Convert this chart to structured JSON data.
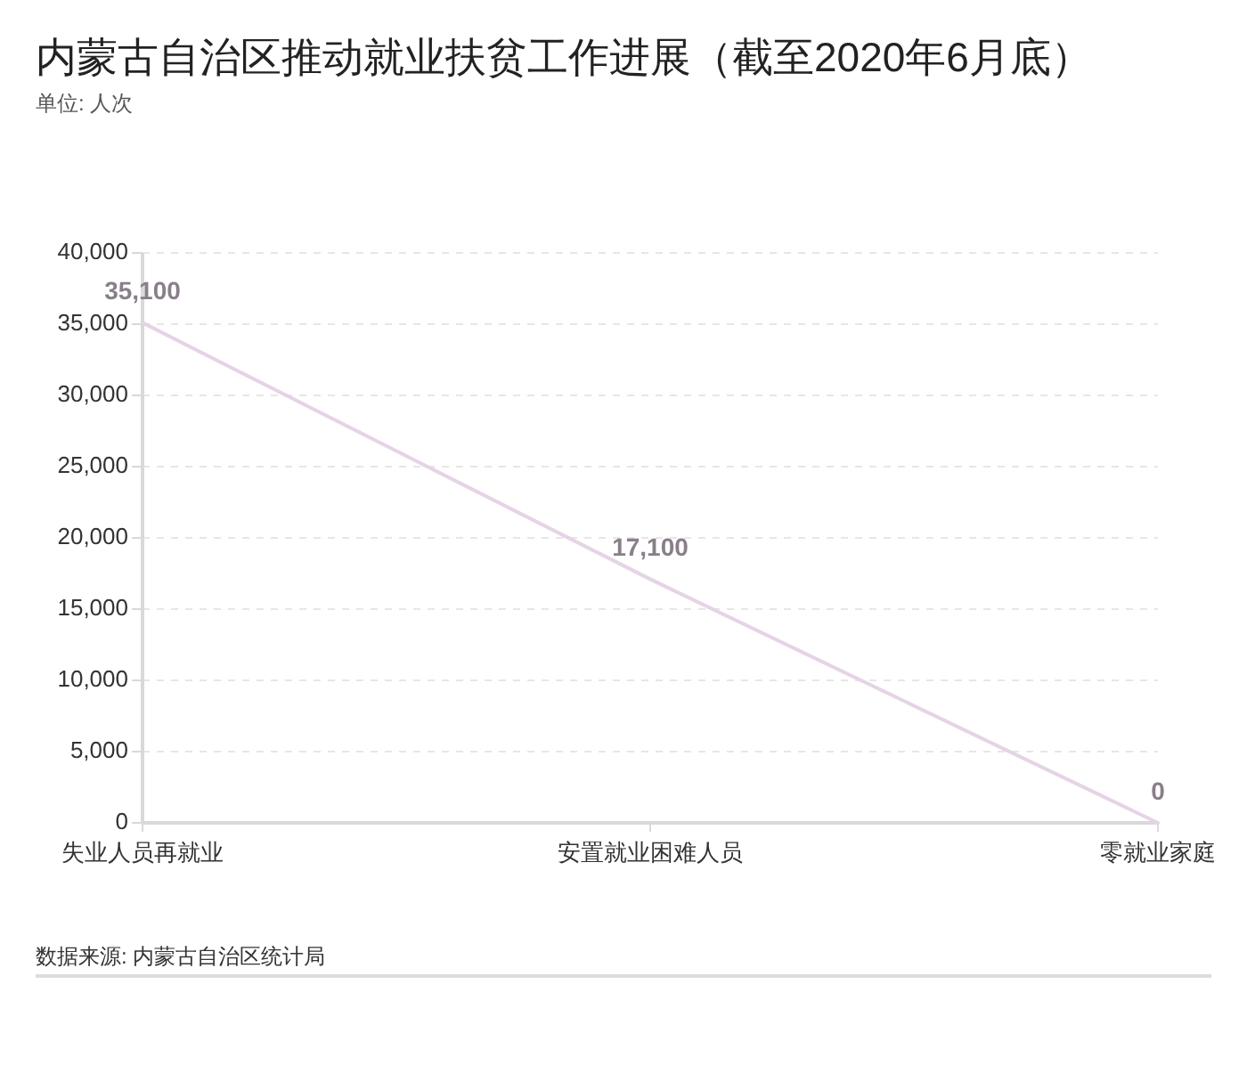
{
  "chart_data": {
    "type": "line",
    "title": "内蒙古自治区推动就业扶贫工作进展（截至2020年6月底）",
    "subtitle": "单位: 人次",
    "categories": [
      "失业人员再就业",
      "安置就业困难人员",
      "零就业家庭"
    ],
    "series": [
      {
        "color": "#e5d3e6",
        "values": [
          35100,
          17100,
          0
        ],
        "value_labels": [
          "35,100",
          "17,100",
          "0"
        ]
      }
    ],
    "ylim": [
      0,
      40000
    ],
    "yticks": [
      0,
      {
        "value": 5000,
        "label": "5,000"
      },
      {
        "value": 10000,
        "label": "10,000"
      },
      {
        "value": 15000,
        "label": "15,000"
      },
      {
        "value": 20000,
        "label": "20,000"
      },
      {
        "value": 25000,
        "label": "25,000"
      },
      {
        "value": 30000,
        "label": "30,000"
      },
      {
        "value": 35000,
        "label": "35,000"
      },
      {
        "value": 40000,
        "label": "40,000"
      }
    ],
    "grid": "y",
    "marker": "none",
    "annotations": [
      "数据来源: 内蒙古自治区统计局"
    ]
  }
}
